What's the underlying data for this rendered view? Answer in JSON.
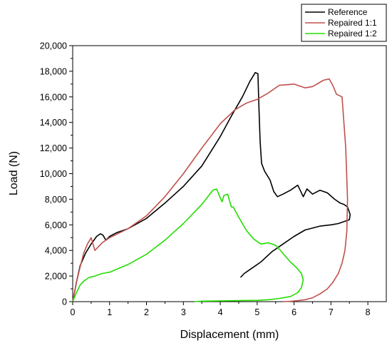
{
  "chart_data": {
    "type": "line",
    "xlabel": "Displacement (mm)",
    "ylabel": "Load (N)",
    "xlim": [
      0,
      8.5
    ],
    "ylim": [
      0,
      20000
    ],
    "x_ticks": [
      0,
      1,
      2,
      3,
      4,
      5,
      6,
      7,
      8
    ],
    "x_tick_labels": [
      "0",
      "1",
      "2",
      "3",
      "4",
      "5",
      "6",
      "7",
      "8"
    ],
    "y_ticks": [
      0,
      2000,
      4000,
      6000,
      8000,
      10000,
      12000,
      14000,
      16000,
      18000,
      20000
    ],
    "y_tick_labels": [
      "0",
      "2,000",
      "4,000",
      "6,000",
      "8,000",
      "10,000",
      "12,000",
      "14,000",
      "16,000",
      "18,000",
      "20,000"
    ],
    "grid": false,
    "legend_position": "top-right",
    "series": [
      {
        "name": "Reference",
        "color": "#000000",
        "x": [
          0,
          0.1,
          0.2,
          0.35,
          0.5,
          0.65,
          0.75,
          0.82,
          0.9,
          1.0,
          1.2,
          1.5,
          2.0,
          2.5,
          3.0,
          3.5,
          4.0,
          4.3,
          4.6,
          4.8,
          4.95,
          5.02,
          5.05,
          5.08,
          5.12,
          5.2,
          5.35,
          5.45,
          5.55,
          5.7,
          5.9,
          6.1,
          6.25,
          6.35,
          6.5,
          6.7,
          6.9,
          7.1,
          7.25,
          7.35,
          7.45,
          7.52,
          7.5,
          7.4,
          7.2,
          7.0,
          6.7,
          6.3,
          6.0,
          5.7,
          5.4,
          5.1,
          4.85,
          4.65,
          4.55
        ],
        "y": [
          0,
          1500,
          2800,
          3800,
          4500,
          5100,
          5300,
          5200,
          4800,
          5100,
          5400,
          5700,
          6500,
          7700,
          9000,
          10600,
          12900,
          14500,
          16000,
          17200,
          17900,
          17800,
          15000,
          12500,
          10800,
          10200,
          9500,
          8600,
          8200,
          8400,
          8700,
          9100,
          8200,
          8800,
          8400,
          8700,
          8500,
          8000,
          7700,
          7600,
          7400,
          6800,
          6400,
          6300,
          6100,
          6000,
          5900,
          5600,
          5100,
          4500,
          3900,
          3100,
          2600,
          2200,
          1900
        ]
      },
      {
        "name": "Repaired 1:1",
        "color": "#c0504d",
        "x": [
          0,
          0.1,
          0.2,
          0.3,
          0.4,
          0.5,
          0.55,
          0.6,
          0.8,
          1.0,
          1.5,
          2.0,
          2.5,
          3.0,
          3.5,
          4.0,
          4.4,
          4.7,
          5.0,
          5.3,
          5.6,
          6.0,
          6.3,
          6.5,
          6.8,
          6.95,
          7.05,
          7.15,
          7.3,
          7.4,
          7.45,
          7.43,
          7.38,
          7.3,
          7.2,
          7.05,
          6.9,
          6.7,
          6.5,
          6.3,
          6.1,
          5.9,
          5.7
        ],
        "y": [
          0,
          1500,
          2700,
          3800,
          4500,
          5000,
          4500,
          4000,
          4600,
          5000,
          5700,
          6700,
          8200,
          10000,
          12000,
          13900,
          15000,
          15500,
          15800,
          16300,
          16900,
          17000,
          16700,
          16800,
          17300,
          17400,
          16900,
          16200,
          16000,
          12000,
          8000,
          5500,
          4000,
          3000,
          2200,
          1500,
          1000,
          600,
          300,
          150,
          80,
          30,
          0
        ]
      },
      {
        "name": "Repaired 1:2",
        "color": "#22dd00",
        "x": [
          0,
          0.1,
          0.2,
          0.3,
          0.45,
          0.6,
          0.8,
          1.0,
          1.5,
          2.0,
          2.5,
          3.0,
          3.5,
          3.8,
          3.9,
          4.0,
          4.05,
          4.1,
          4.2,
          4.3,
          4.35,
          4.5,
          4.7,
          4.9,
          5.1,
          5.3,
          5.5,
          5.6,
          5.75,
          5.9,
          6.05,
          6.2,
          6.25,
          6.2,
          6.1,
          5.9,
          5.6,
          5.3,
          5.0,
          4.5,
          4.0,
          3.5,
          3.3
        ],
        "y": [
          0,
          700,
          1300,
          1600,
          1900,
          2000,
          2200,
          2300,
          2900,
          3700,
          4800,
          6100,
          7600,
          8700,
          8800,
          8100,
          7800,
          8300,
          8400,
          7400,
          7400,
          6600,
          5600,
          4900,
          4500,
          4600,
          4400,
          4100,
          3600,
          3100,
          2700,
          2200,
          1700,
          1100,
          700,
          400,
          250,
          150,
          100,
          80,
          60,
          40,
          0
        ]
      }
    ]
  }
}
